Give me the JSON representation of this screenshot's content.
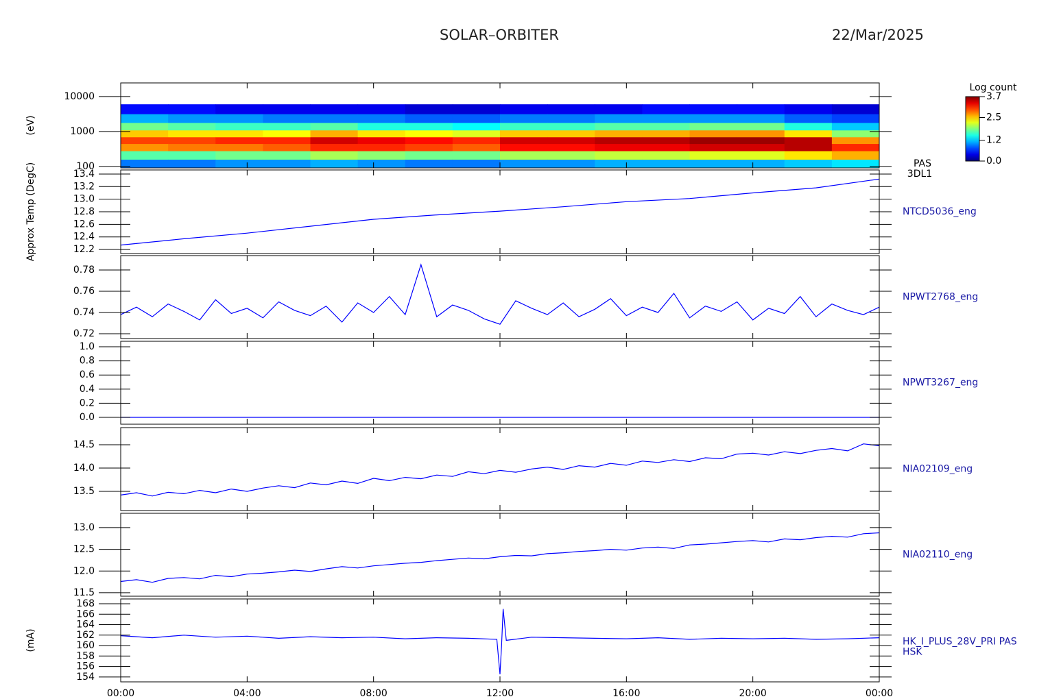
{
  "header": {
    "title": "SOLAR–ORBITER",
    "date": "22/Mar/2025"
  },
  "chart_data": [
    {
      "type": "heatmap",
      "ylabel": "(eV)",
      "labels": [
        "PAS",
        "3DL1"
      ],
      "log_scale": true,
      "ylim": [
        91,
        24500
      ],
      "yticks": [
        100,
        1000,
        10000
      ],
      "x_bins": [
        0,
        1.5,
        3,
        4.5,
        6,
        7.5,
        9,
        10.5,
        12,
        13.5,
        15,
        16.5,
        18,
        19.5,
        21,
        22.5,
        24
      ],
      "y_bins": [
        91,
        160,
        280,
        450,
        700,
        1100,
        1800,
        3200,
        6000
      ],
      "z": [
        [
          0.9,
          1.7,
          2.7,
          3.0,
          2.5,
          1.8,
          1.1,
          0.5
        ],
        [
          0.9,
          1.7,
          2.8,
          3.0,
          2.4,
          1.7,
          1.0,
          0.5
        ],
        [
          1.0,
          1.8,
          2.8,
          3.1,
          2.4,
          1.6,
          1.0,
          0.4
        ],
        [
          1.0,
          1.8,
          2.9,
          3.1,
          2.3,
          1.6,
          0.9,
          0.4
        ],
        [
          1.1,
          2.0,
          3.1,
          3.4,
          2.6,
          1.7,
          0.9,
          0.4
        ],
        [
          1.0,
          1.9,
          3.1,
          3.3,
          2.4,
          1.5,
          0.9,
          0.4
        ],
        [
          0.9,
          1.8,
          3.0,
          3.2,
          2.3,
          1.5,
          0.8,
          0.3
        ],
        [
          0.9,
          1.8,
          2.9,
          3.1,
          2.2,
          1.4,
          0.8,
          0.3
        ],
        [
          1.0,
          2.0,
          3.2,
          3.4,
          2.5,
          1.6,
          0.9,
          0.4
        ],
        [
          1.0,
          2.0,
          3.2,
          3.4,
          2.5,
          1.6,
          0.9,
          0.4
        ],
        [
          1.1,
          2.1,
          3.3,
          3.5,
          2.6,
          1.7,
          1.0,
          0.4
        ],
        [
          1.1,
          2.1,
          3.3,
          3.5,
          2.6,
          1.7,
          1.0,
          0.5
        ],
        [
          1.1,
          2.2,
          3.4,
          3.6,
          2.7,
          1.8,
          1.0,
          0.5
        ],
        [
          1.1,
          2.2,
          3.4,
          3.6,
          2.7,
          1.8,
          1.0,
          0.5
        ],
        [
          1.2,
          2.4,
          3.5,
          3.5,
          2.4,
          1.5,
          0.8,
          0.4
        ],
        [
          1.3,
          2.6,
          3.1,
          2.7,
          1.9,
          1.2,
          0.7,
          0.3
        ]
      ],
      "colorbar_label": "Log count",
      "clim": [
        0,
        3.7
      ],
      "colorbar_ticks": [
        {
          "value": 0,
          "label": "0.0"
        },
        1.2,
        2.5,
        3.7
      ]
    },
    {
      "type": "line",
      "ylabel": "Approx Temp (DegC)",
      "labels": [
        "NTCD5036_eng"
      ],
      "color": "#0000ff",
      "ylim": [
        12.135,
        13.465
      ],
      "yticks": [
        12.2,
        12.4,
        12.6,
        12.8,
        {
          "value": 13,
          "label": "13.0"
        },
        13.2,
        13.4
      ],
      "x": [
        0,
        2,
        4,
        6,
        8,
        10,
        12,
        14,
        16,
        18,
        20,
        22,
        24
      ],
      "values": [
        12.27,
        12.37,
        12.46,
        12.57,
        12.68,
        12.75,
        12.81,
        12.88,
        12.96,
        13.01,
        13.1,
        13.18,
        13.32
      ]
    },
    {
      "type": "line",
      "labels": [
        "NPWT2768_eng"
      ],
      "color": "#0000ff",
      "ylim": [
        0.7155,
        0.7935
      ],
      "yticks": [
        0.72,
        0.74,
        0.76,
        0.78
      ],
      "x": [
        0,
        0.5,
        1,
        1.5,
        2,
        2.5,
        3,
        3.5,
        4,
        4.5,
        5,
        5.5,
        6,
        6.5,
        7,
        7.5,
        8,
        8.5,
        9,
        9.5,
        10,
        10.5,
        11,
        11.5,
        12,
        12.5,
        13,
        13.5,
        14,
        14.5,
        15,
        15.5,
        16,
        16.5,
        17,
        17.5,
        18,
        18.5,
        19,
        19.5,
        20,
        20.5,
        21,
        21.5,
        22,
        22.5,
        23,
        23.5,
        24
      ],
      "values": [
        0.738,
        0.745,
        0.736,
        0.748,
        0.741,
        0.733,
        0.752,
        0.739,
        0.744,
        0.735,
        0.75,
        0.742,
        0.737,
        0.746,
        0.731,
        0.749,
        0.74,
        0.755,
        0.738,
        0.785,
        0.736,
        0.747,
        0.742,
        0.734,
        0.729,
        0.751,
        0.744,
        0.738,
        0.749,
        0.736,
        0.743,
        0.753,
        0.737,
        0.745,
        0.74,
        0.758,
        0.735,
        0.746,
        0.741,
        0.75,
        0.733,
        0.744,
        0.739,
        0.755,
        0.736,
        0.748,
        0.742,
        0.738,
        0.745
      ]
    },
    {
      "type": "line",
      "labels": [
        "NPWT3267_eng"
      ],
      "color": "#0000ff",
      "ylim": [
        -0.097,
        1.078
      ],
      "yticks": [
        {
          "value": 0,
          "label": "0.0"
        },
        0.2,
        0.4,
        0.6,
        0.8,
        {
          "value": 1,
          "label": "1.0"
        }
      ],
      "x": [
        0,
        2,
        4,
        6,
        8,
        10,
        12,
        14,
        16,
        18,
        20,
        22,
        24
      ],
      "values": [
        0,
        0,
        0,
        0,
        0,
        0,
        0,
        0,
        0,
        0,
        0,
        0,
        0
      ]
    },
    {
      "type": "line",
      "labels": [
        "NIA02109_eng"
      ],
      "color": "#0000ff",
      "ylim": [
        13.088,
        14.868
      ],
      "yticks": [
        13.5,
        {
          "value": 14,
          "label": "14.0"
        },
        14.5
      ],
      "x": [
        0,
        0.5,
        1,
        1.5,
        2,
        2.5,
        3,
        3.5,
        4,
        4.5,
        5,
        5.5,
        6,
        6.5,
        7,
        7.5,
        8,
        8.5,
        9,
        9.5,
        10,
        10.5,
        11,
        11.5,
        12,
        12.5,
        13,
        13.5,
        14,
        14.5,
        15,
        15.5,
        16,
        16.5,
        17,
        17.5,
        18,
        18.5,
        19,
        19.5,
        20,
        20.5,
        21,
        21.5,
        22,
        22.5,
        23,
        23.5,
        24
      ],
      "values": [
        13.42,
        13.47,
        13.4,
        13.48,
        13.45,
        13.52,
        13.47,
        13.55,
        13.5,
        13.57,
        13.62,
        13.58,
        13.68,
        13.64,
        13.72,
        13.67,
        13.78,
        13.73,
        13.8,
        13.77,
        13.85,
        13.82,
        13.92,
        13.88,
        13.95,
        13.91,
        13.98,
        14.02,
        13.97,
        14.05,
        14.02,
        14.1,
        14.06,
        14.15,
        14.12,
        14.18,
        14.14,
        14.22,
        14.2,
        14.3,
        14.32,
        14.28,
        14.35,
        14.31,
        14.38,
        14.42,
        14.37,
        14.52,
        14.48
      ]
    },
    {
      "type": "line",
      "labels": [
        "NIA02110_eng"
      ],
      "color": "#0000ff",
      "ylim": [
        11.42,
        13.33
      ],
      "yticks": [
        11.5,
        {
          "value": 12,
          "label": "12.0"
        },
        12.5,
        {
          "value": 13,
          "label": "13.0"
        }
      ],
      "x": [
        0,
        0.5,
        1,
        1.5,
        2,
        2.5,
        3,
        3.5,
        4,
        4.5,
        5,
        5.5,
        6,
        6.5,
        7,
        7.5,
        8,
        8.5,
        9,
        9.5,
        10,
        10.5,
        11,
        11.5,
        12,
        12.5,
        13,
        13.5,
        14,
        14.5,
        15,
        15.5,
        16,
        16.5,
        17,
        17.5,
        18,
        18.5,
        19,
        19.5,
        20,
        20.5,
        21,
        21.5,
        22,
        22.5,
        23,
        23.5,
        24
      ],
      "values": [
        11.76,
        11.8,
        11.74,
        11.83,
        11.85,
        11.82,
        11.9,
        11.87,
        11.93,
        11.95,
        11.98,
        12.02,
        11.99,
        12.05,
        12.1,
        12.07,
        12.12,
        12.15,
        12.18,
        12.2,
        12.24,
        12.27,
        12.3,
        12.28,
        12.33,
        12.36,
        12.35,
        12.4,
        12.42,
        12.45,
        12.47,
        12.5,
        12.48,
        12.53,
        12.55,
        12.52,
        12.6,
        12.62,
        12.65,
        12.68,
        12.7,
        12.67,
        12.74,
        12.72,
        12.77,
        12.8,
        12.78,
        12.86,
        12.88
      ]
    },
    {
      "type": "line",
      "ylabel": "(mA)",
      "labels": [
        "HK_I_PLUS_28V_PRI PAS",
        "HSK"
      ],
      "color": "#0000ff",
      "ylim": [
        153.06,
        168.92
      ],
      "yticks": [
        154,
        156,
        158,
        160,
        162,
        164,
        166,
        168
      ],
      "x": [
        0,
        1,
        2,
        3,
        4,
        5,
        6,
        7,
        8,
        9,
        10,
        11,
        11.9,
        12,
        12.05,
        12.1,
        12.2,
        13,
        14,
        15,
        16,
        17,
        18,
        19,
        20,
        21,
        22,
        23,
        24
      ],
      "values": [
        161.9,
        161.5,
        162.0,
        161.6,
        161.8,
        161.4,
        161.7,
        161.5,
        161.6,
        161.3,
        161.5,
        161.4,
        161.2,
        154.5,
        160.0,
        167.0,
        161.0,
        161.6,
        161.5,
        161.4,
        161.3,
        161.5,
        161.2,
        161.4,
        161.3,
        161.4,
        161.2,
        161.3,
        161.5
      ],
      "xlim": [
        0,
        24
      ],
      "xticks": [
        {
          "value": 0,
          "label": "00:00"
        },
        {
          "value": 4,
          "label": "04:00"
        },
        {
          "value": 8,
          "label": "08:00"
        },
        {
          "value": 12,
          "label": "12:00"
        },
        {
          "value": 16,
          "label": "16:00"
        },
        {
          "value": 20,
          "label": "20:00"
        },
        {
          "value": 24,
          "label": "00:00"
        }
      ]
    }
  ]
}
